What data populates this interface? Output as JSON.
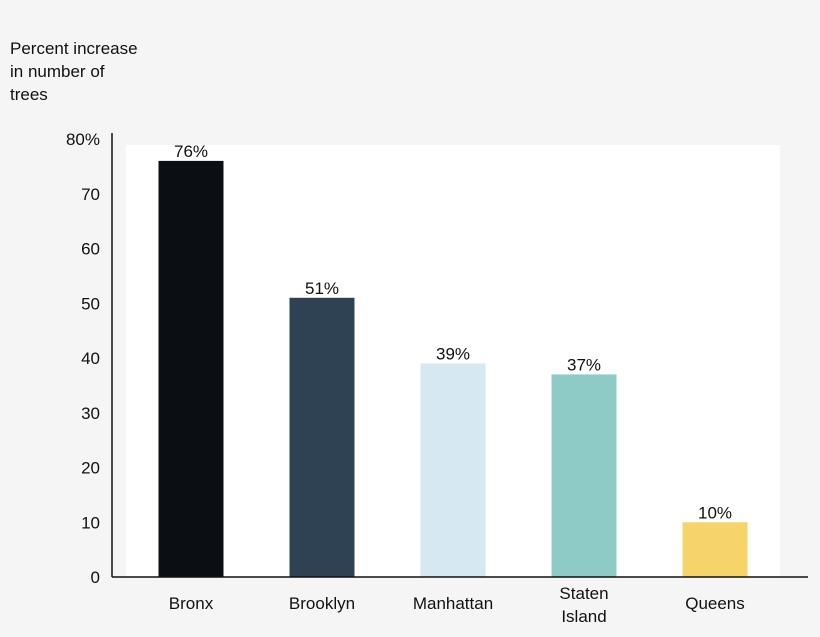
{
  "chart_data": {
    "type": "bar",
    "ylabel": "Percent increase in number of trees",
    "ylabel_lines": [
      "Percent increase",
      "in number of",
      "trees"
    ],
    "categories": [
      "Bronx",
      "Brooklyn",
      "Manhattan",
      "Staten Island",
      "Queens"
    ],
    "category_lines": [
      [
        "Bronx"
      ],
      [
        "Brooklyn"
      ],
      [
        "Manhattan"
      ],
      [
        "Staten",
        "Island"
      ],
      [
        "Queens"
      ]
    ],
    "values": [
      76,
      51,
      39,
      37,
      10
    ],
    "data_labels": [
      "76%",
      "51%",
      "39%",
      "37%",
      "10%"
    ],
    "colors": [
      "#0b0f14",
      "#2f4254",
      "#d6e8f1",
      "#8ecbc6",
      "#f6d46a"
    ],
    "ylim": [
      0,
      80
    ],
    "yticks": [
      0,
      10,
      20,
      30,
      40,
      50,
      60,
      70,
      80
    ],
    "ytick_labels": [
      "0",
      "10",
      "20",
      "30",
      "40",
      "50",
      "60",
      "70",
      "80%"
    ],
    "grid": false,
    "legend": "none"
  }
}
